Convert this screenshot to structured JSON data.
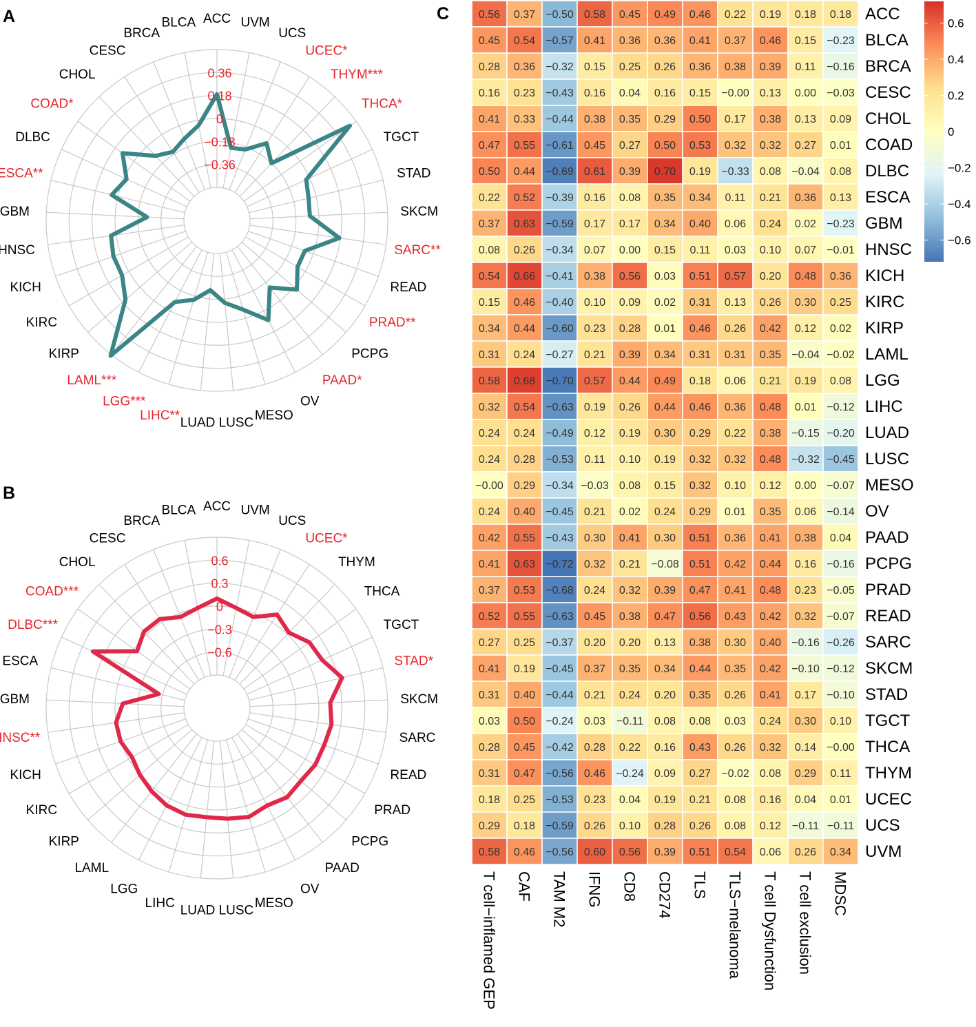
{
  "colors": {
    "significant": "#e8242d",
    "normal": "#000000",
    "radarA_line": "#3a8585",
    "radarB_line": "#e0284a",
    "grid": "#c8c8c8"
  },
  "chart_data": [
    {
      "panel": "A",
      "type": "radar",
      "ylim": [
        -0.54,
        0.54
      ],
      "tick_values": [
        0.36,
        0.18,
        0,
        -0.18,
        -0.36
      ],
      "tick_labels": [
        "0.36",
        "0.18",
        "0",
        "−0.18",
        "−0.36"
      ],
      "categories": [
        "ACC",
        "UVM",
        "UCS",
        "UCEC*",
        "THYM***",
        "THCA*",
        "TGCT",
        "STAD",
        "SKCM",
        "SARC**",
        "READ",
        "PRAD**",
        "PCPG",
        "PAAD*",
        "OV",
        "MESO",
        "LUSC",
        "LUAD",
        "LIHC**",
        "LGG***",
        "LAML***",
        "KIRP",
        "KIRC",
        "KICH",
        "HNSC",
        "GBM",
        "ESCA**",
        "DLBC",
        "COAD*",
        "CHOL",
        "CESC",
        "BRCA",
        "BLCA"
      ],
      "significant": [
        false,
        false,
        false,
        true,
        true,
        true,
        false,
        false,
        false,
        true,
        false,
        true,
        false,
        true,
        false,
        false,
        false,
        false,
        true,
        true,
        true,
        false,
        false,
        false,
        false,
        false,
        true,
        false,
        true,
        false,
        false,
        false,
        false
      ],
      "values": [
        0.19,
        -0.22,
        -0.2,
        -0.08,
        -0.18,
        0.48,
        -0.03,
        -0.06,
        -0.07,
        0.17,
        -0.07,
        -0.07,
        0.03,
        -0.13,
        0.08,
        -0.07,
        -0.15,
        -0.25,
        -0.15,
        -0.08,
        0.55,
        0.15,
        0.06,
        0.06,
        0.04,
        -0.25,
        0.05,
        -0.02,
        0.11,
        -0.1,
        -0.16,
        -0.11,
        -0.04
      ]
    },
    {
      "panel": "B",
      "type": "radar",
      "ylim": [
        -0.9,
        0.9
      ],
      "tick_values": [
        0.6,
        0.3,
        0,
        -0.3,
        -0.6
      ],
      "tick_labels": [
        "0.6",
        "0.3",
        "0",
        "−0.3",
        "−0.6"
      ],
      "categories": [
        "ACC",
        "UVM",
        "UCS",
        "UCEC*",
        "THYM",
        "THCA",
        "TGCT",
        "STAD*",
        "SKCM",
        "SARC",
        "READ",
        "PRAD",
        "PCPG",
        "PAAD",
        "OV",
        "MESO",
        "LUSC",
        "LUAD",
        "LIHC",
        "LGG",
        "LAML",
        "KIRP",
        "KIRC",
        "KICH",
        "HNSC**",
        "GBM",
        "ESCA",
        "DLBC***",
        "COAD***",
        "CHOL",
        "CESC",
        "BRCA",
        "BLCA"
      ],
      "significant": [
        false,
        false,
        false,
        true,
        false,
        false,
        false,
        true,
        false,
        false,
        false,
        false,
        false,
        false,
        false,
        false,
        false,
        false,
        false,
        false,
        false,
        false,
        false,
        false,
        true,
        false,
        false,
        true,
        true,
        false,
        false,
        false,
        false
      ],
      "values": [
        0.1,
        0.0,
        -0.05,
        0.12,
        0.03,
        0.15,
        0.18,
        0.35,
        0.15,
        0.18,
        0.15,
        0.15,
        0.12,
        0.15,
        0.1,
        0.15,
        0.12,
        0.1,
        0.12,
        0.1,
        0.05,
        0.0,
        -0.05,
        0.0,
        0.0,
        -0.1,
        -0.55,
        0.45,
        -0.05,
        0.05,
        0.05,
        -0.05,
        0.0
      ]
    },
    {
      "panel": "C",
      "type": "heatmap",
      "rows": [
        "ACC",
        "BLCA",
        "BRCA",
        "CESC",
        "CHOL",
        "COAD",
        "DLBC",
        "ESCA",
        "GBM",
        "HNSC",
        "KICH",
        "KIRC",
        "KIRP",
        "LAML",
        "LGG",
        "LIHC",
        "LUAD",
        "LUSC",
        "MESO",
        "OV",
        "PAAD",
        "PCPG",
        "PRAD",
        "READ",
        "SARC",
        "SKCM",
        "STAD",
        "TGCT",
        "THCA",
        "THYM",
        "UCEC",
        "UCS",
        "UVM"
      ],
      "columns": [
        "T cell−inflamed GEP",
        "CAF",
        "TAM M2",
        "IFNG",
        "CD8",
        "CD274",
        "TLS",
        "TLS−melanoma",
        "T cell Dysfunction",
        "T cell exclusion",
        "MDSC"
      ],
      "values": [
        [
          0.56,
          0.37,
          -0.5,
          0.58,
          0.45,
          0.49,
          0.46,
          0.22,
          0.19,
          0.18,
          0.18
        ],
        [
          0.45,
          0.54,
          -0.57,
          0.41,
          0.36,
          0.36,
          0.41,
          0.37,
          0.46,
          0.15,
          -0.23
        ],
        [
          0.28,
          0.36,
          -0.32,
          0.15,
          0.25,
          0.26,
          0.36,
          0.38,
          0.39,
          0.11,
          -0.16
        ],
        [
          0.16,
          0.23,
          -0.43,
          0.16,
          0.04,
          0.16,
          0.15,
          -0.0,
          0.13,
          0.0,
          -0.03
        ],
        [
          0.41,
          0.33,
          -0.44,
          0.38,
          0.35,
          0.29,
          0.5,
          0.17,
          0.38,
          0.13,
          0.09
        ],
        [
          0.47,
          0.55,
          -0.61,
          0.45,
          0.27,
          0.5,
          0.53,
          0.32,
          0.32,
          0.27,
          0.01
        ],
        [
          0.5,
          0.44,
          -0.69,
          0.61,
          0.39,
          0.7,
          0.19,
          -0.33,
          0.08,
          -0.04,
          0.08
        ],
        [
          0.22,
          0.52,
          -0.39,
          0.16,
          0.08,
          0.35,
          0.34,
          0.11,
          0.21,
          0.36,
          0.13
        ],
        [
          0.37,
          0.63,
          -0.59,
          0.17,
          0.17,
          0.34,
          0.4,
          0.06,
          0.24,
          0.02,
          -0.23
        ],
        [
          0.08,
          0.26,
          -0.34,
          0.07,
          0.0,
          0.15,
          0.11,
          0.03,
          0.1,
          0.07,
          -0.01
        ],
        [
          0.54,
          0.66,
          -0.41,
          0.38,
          0.56,
          0.03,
          0.51,
          0.57,
          0.2,
          0.48,
          0.36
        ],
        [
          0.15,
          0.46,
          -0.4,
          0.1,
          0.09,
          0.02,
          0.31,
          0.13,
          0.26,
          0.3,
          0.25
        ],
        [
          0.34,
          0.44,
          -0.6,
          0.23,
          0.28,
          0.01,
          0.46,
          0.26,
          0.42,
          0.12,
          0.02
        ],
        [
          0.31,
          0.24,
          -0.27,
          0.21,
          0.39,
          0.34,
          0.31,
          0.31,
          0.35,
          -0.04,
          -0.02
        ],
        [
          0.58,
          0.68,
          -0.7,
          0.57,
          0.44,
          0.49,
          0.18,
          0.06,
          0.21,
          0.19,
          0.08
        ],
        [
          0.32,
          0.54,
          -0.63,
          0.19,
          0.26,
          0.44,
          0.46,
          0.36,
          0.48,
          0.01,
          -0.12
        ],
        [
          0.24,
          0.24,
          -0.49,
          0.12,
          0.19,
          0.3,
          0.29,
          0.22,
          0.38,
          -0.15,
          -0.2
        ],
        [
          0.24,
          0.28,
          -0.53,
          0.11,
          0.1,
          0.19,
          0.32,
          0.32,
          0.48,
          -0.32,
          -0.45
        ],
        [
          -0.0,
          0.29,
          -0.34,
          -0.03,
          0.08,
          0.15,
          0.32,
          0.1,
          0.12,
          0.0,
          -0.07
        ],
        [
          0.24,
          0.4,
          -0.45,
          0.21,
          0.02,
          0.24,
          0.29,
          0.01,
          0.35,
          0.06,
          -0.14
        ],
        [
          0.42,
          0.55,
          -0.43,
          0.3,
          0.41,
          0.3,
          0.51,
          0.36,
          0.41,
          0.38,
          0.04
        ],
        [
          0.41,
          0.63,
          -0.72,
          0.32,
          0.21,
          -0.08,
          0.51,
          0.42,
          0.44,
          0.16,
          -0.16
        ],
        [
          0.37,
          0.53,
          -0.68,
          0.24,
          0.32,
          0.39,
          0.47,
          0.41,
          0.48,
          0.23,
          -0.05
        ],
        [
          0.52,
          0.55,
          -0.63,
          0.45,
          0.38,
          0.47,
          0.56,
          0.43,
          0.42,
          0.32,
          -0.07
        ],
        [
          0.27,
          0.25,
          -0.37,
          0.2,
          0.2,
          0.13,
          0.38,
          0.3,
          0.4,
          -0.16,
          -0.26
        ],
        [
          0.41,
          0.19,
          -0.45,
          0.37,
          0.35,
          0.34,
          0.44,
          0.35,
          0.42,
          -0.1,
          -0.12
        ],
        [
          0.31,
          0.4,
          -0.44,
          0.21,
          0.24,
          0.2,
          0.35,
          0.26,
          0.41,
          0.17,
          -0.1
        ],
        [
          0.03,
          0.5,
          -0.24,
          0.03,
          -0.11,
          0.08,
          0.08,
          0.03,
          0.24,
          0.3,
          0.1
        ],
        [
          0.28,
          0.45,
          -0.42,
          0.28,
          0.22,
          0.16,
          0.43,
          0.26,
          0.32,
          0.14,
          -0.0
        ],
        [
          0.31,
          0.47,
          -0.56,
          0.46,
          -0.24,
          0.09,
          0.27,
          -0.02,
          0.08,
          0.29,
          0.11
        ],
        [
          0.18,
          0.25,
          -0.53,
          0.23,
          0.04,
          0.19,
          0.21,
          0.08,
          0.16,
          0.04,
          0.01
        ],
        [
          0.29,
          0.18,
          -0.59,
          0.26,
          0.1,
          0.28,
          0.26,
          0.08,
          0.12,
          -0.11,
          -0.11
        ],
        [
          0.58,
          0.46,
          -0.56,
          0.6,
          0.56,
          0.39,
          0.51,
          0.54,
          0.06,
          0.26,
          0.34
        ]
      ],
      "colorbar": {
        "range": [
          -0.72,
          0.72
        ],
        "tick_values": [
          0.6,
          0.4,
          0.2,
          0,
          -0.2,
          -0.4,
          -0.6
        ],
        "tick_labels": [
          "0.6",
          "0.4",
          "0.2",
          "0",
          "−0.2",
          "−0.4",
          "−0.6"
        ],
        "palette": [
          "#4575b4",
          "#91bfdb",
          "#e0f3f8",
          "#ffffbf",
          "#fee090",
          "#fc8d59",
          "#d73027"
        ]
      }
    }
  ],
  "panels": [
    {
      "label": "A"
    },
    {
      "label": "B"
    },
    {
      "label": "C"
    }
  ]
}
